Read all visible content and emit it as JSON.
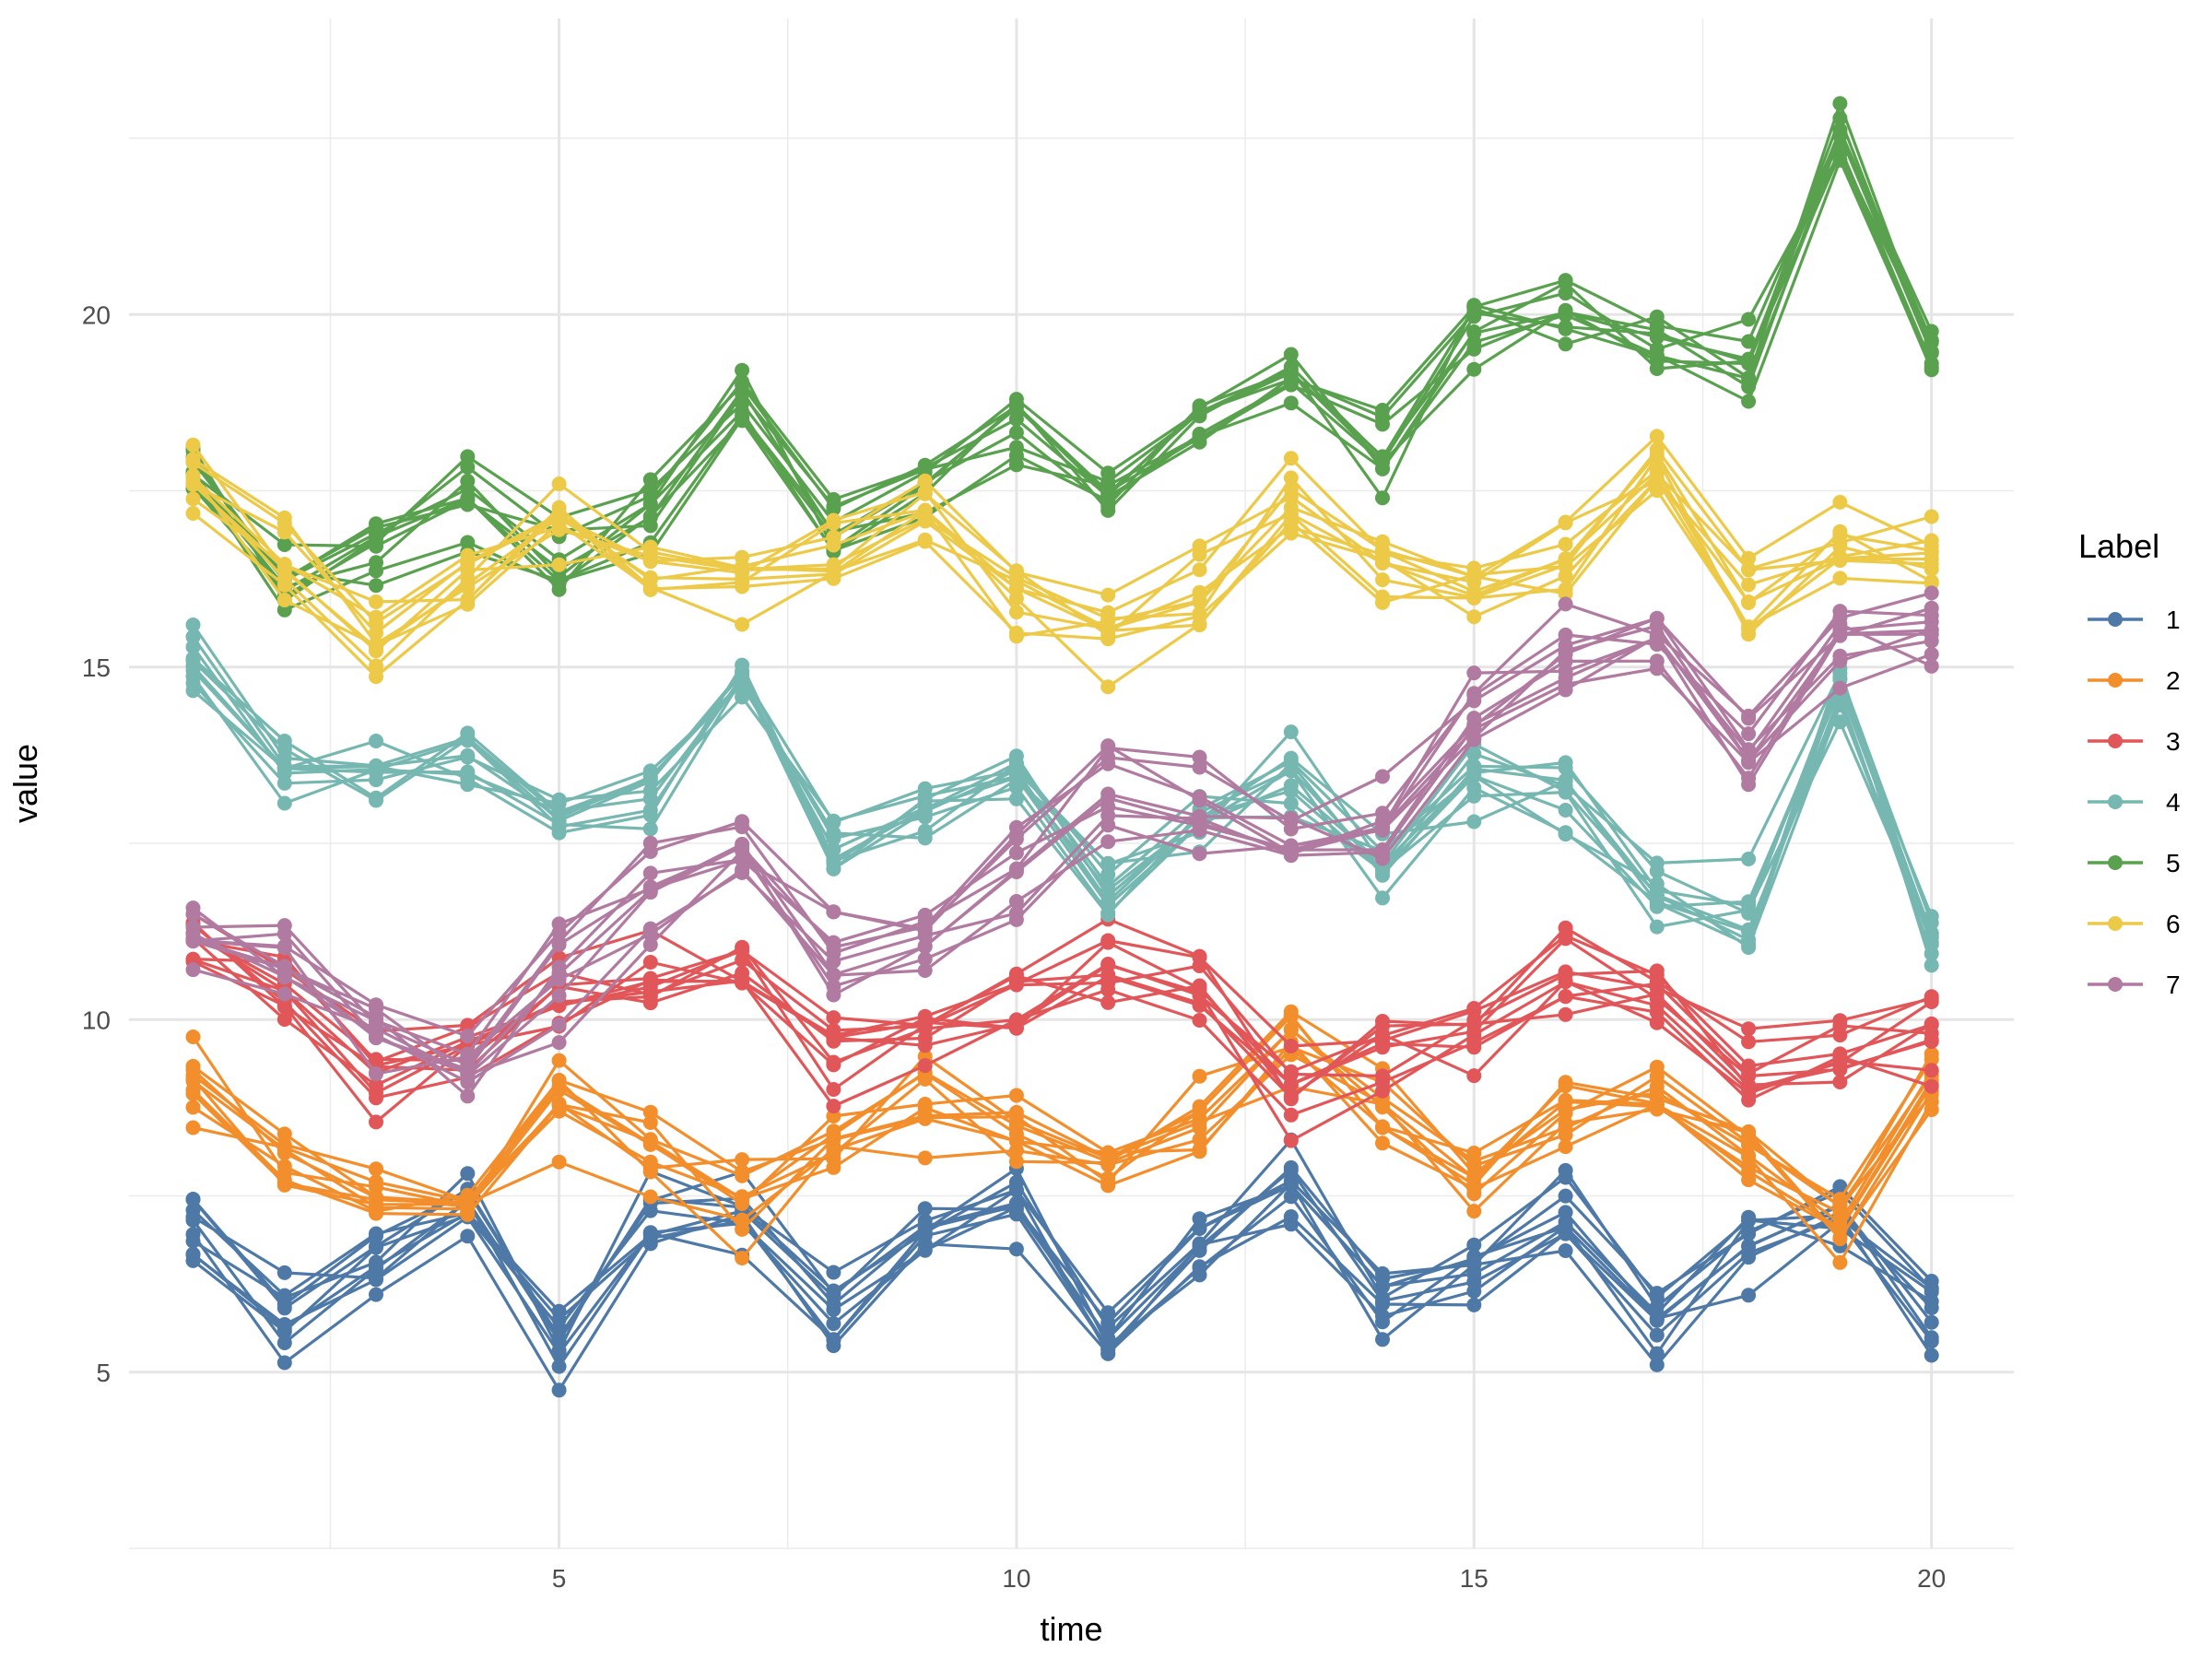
{
  "chart_data": {
    "type": "line",
    "title": "",
    "xlabel": "time",
    "ylabel": "value",
    "xlim": [
      0.3,
      20.9
    ],
    "ylim": [
      2.5,
      24.2
    ],
    "x_ticks": [
      5,
      10,
      15,
      20
    ],
    "y_ticks": [
      5,
      10,
      15,
      20
    ],
    "grid": true,
    "legend": {
      "title": "Label",
      "position": "right"
    },
    "x": [
      1,
      2,
      3,
      4,
      5,
      6,
      7,
      8,
      9,
      10,
      11,
      12,
      13,
      14,
      15,
      16,
      17,
      18,
      19,
      20
    ],
    "series": [
      {
        "name": "1",
        "color": "#4E79A7",
        "baseline": [
          7.0,
          5.8,
          6.7,
          7.5,
          5.6,
          7.2,
          7.4,
          5.9,
          6.9,
          7.5,
          5.6,
          6.8,
          7.6,
          6.1,
          6.5,
          7.3,
          5.8,
          6.9,
          7.4,
          5.9
        ]
      },
      {
        "name": "2",
        "color": "#F28E2B",
        "baseline": [
          9.1,
          8.1,
          7.6,
          7.3,
          8.9,
          8.2,
          7.4,
          8.4,
          8.9,
          8.5,
          7.8,
          8.7,
          9.8,
          8.8,
          8.0,
          8.6,
          9.0,
          8.2,
          7.2,
          9.1
        ]
      },
      {
        "name": "3",
        "color": "#E15759",
        "baseline": [
          11.2,
          10.5,
          9.4,
          9.6,
          10.3,
          10.8,
          10.9,
          9.6,
          9.9,
          10.3,
          10.8,
          10.6,
          9.0,
          9.6,
          9.9,
          10.7,
          10.3,
          9.4,
          9.6,
          9.9
        ]
      },
      {
        "name": "4",
        "color": "#76B7B2",
        "baseline": [
          15.0,
          13.4,
          13.6,
          13.7,
          12.7,
          13.3,
          14.6,
          12.4,
          12.8,
          13.3,
          11.8,
          12.9,
          13.3,
          12.1,
          13.4,
          13.1,
          11.8,
          11.5,
          14.6,
          11.3
        ]
      },
      {
        "name": "5",
        "color": "#59A14F",
        "baseline": [
          17.6,
          16.0,
          16.6,
          17.2,
          16.3,
          17.1,
          18.8,
          16.8,
          17.4,
          18.3,
          17.4,
          18.4,
          19.1,
          17.8,
          19.7,
          19.9,
          19.4,
          19.1,
          22.4,
          19.4
        ]
      },
      {
        "name": "6",
        "color": "#EDC948",
        "baseline": [
          17.6,
          16.5,
          15.3,
          16.2,
          17.1,
          16.3,
          16.3,
          16.5,
          17.2,
          16.0,
          15.6,
          16.2,
          17.3,
          16.5,
          16.1,
          16.4,
          17.7,
          16.0,
          16.6,
          16.6
        ]
      },
      {
        "name": "7",
        "color": "#B07AA1",
        "baseline": [
          11.1,
          10.8,
          9.8,
          9.2,
          10.5,
          11.6,
          12.6,
          11.0,
          11.0,
          12.1,
          13.1,
          13.0,
          12.6,
          12.6,
          14.3,
          15.1,
          15.3,
          13.7,
          15.5,
          15.6
        ]
      }
    ],
    "lines_per_series": 10
  }
}
